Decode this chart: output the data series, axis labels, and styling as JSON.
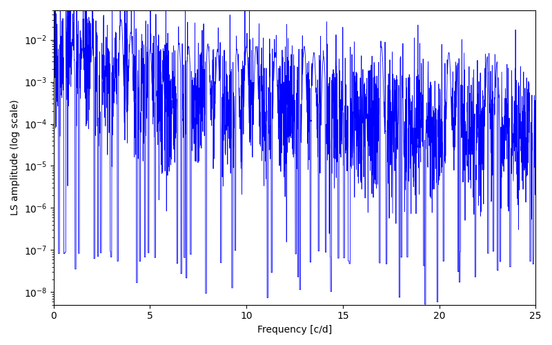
{
  "line_color": "#0000ff",
  "xlabel": "Frequency [c/d]",
  "ylabel": "LS amplitude (log scale)",
  "xmin": 0,
  "xmax": 25,
  "ymin": 5e-09,
  "ymax": 0.05,
  "num_points": 3000,
  "seed": 17,
  "line_width": 0.6,
  "figsize": [
    8.0,
    5.0
  ],
  "dpi": 100,
  "xticks": [
    0,
    5,
    10,
    15,
    20,
    25
  ]
}
